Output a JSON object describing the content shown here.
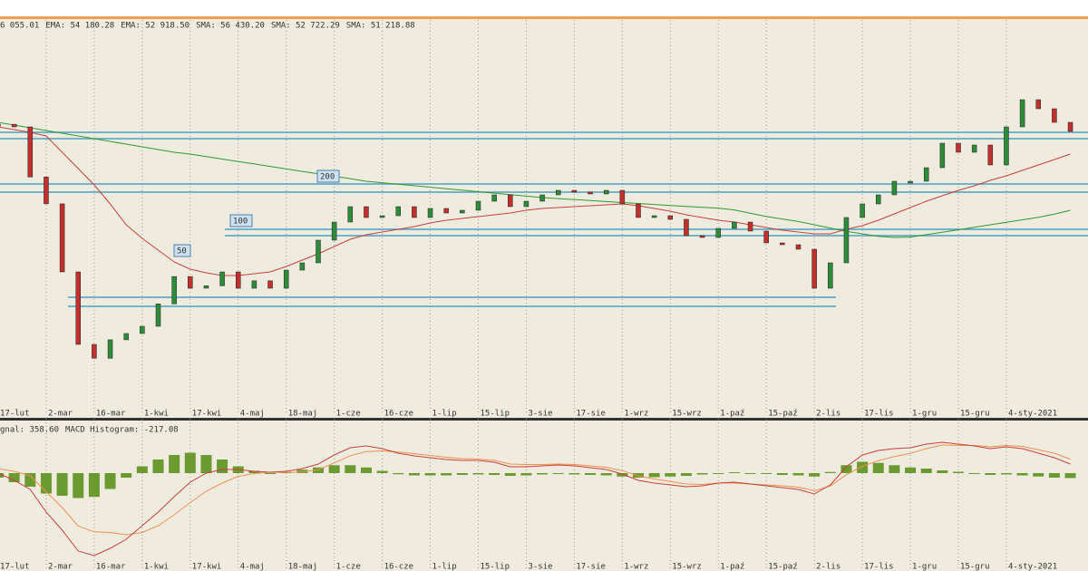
{
  "chart_data": [
    {
      "type": "line",
      "legend": [
        {
          "text": "6 055.01",
          "color": "#333333"
        },
        {
          "text": "EMA: 54 180.28",
          "color": "#e0905a"
        },
        {
          "text": "EMA: 52 918.50",
          "color": "#c8403c"
        },
        {
          "text": "SMA: 56 430.20",
          "color": "#4a7fd0"
        },
        {
          "text": "SMA: 52 722.29",
          "color": "#a08f5a"
        },
        {
          "text": "SMA: 51 218.88",
          "color": "#2e9a2e"
        }
      ],
      "categories": [
        "17-lut",
        null,
        null,
        "2-mar",
        null,
        null,
        "16-mar",
        null,
        null,
        "1-kwi",
        null,
        null,
        "17-kwi",
        null,
        null,
        "4-maj",
        null,
        null,
        "18-maj",
        null,
        null,
        "1-cze",
        null,
        null,
        "16-cze",
        null,
        null,
        "1-lip",
        null,
        null,
        "15-lip",
        null,
        null,
        "3-sie",
        null,
        null,
        "17-sie",
        null,
        null,
        "1-wrz",
        null,
        null,
        "15-wrz",
        null,
        null,
        "1-paź",
        null,
        null,
        "15-paź",
        null,
        null,
        "2-lis",
        null,
        null,
        "17-lis",
        null,
        null,
        "1-gru",
        null,
        null,
        "15-gru",
        null,
        null,
        "4-sty-2021",
        null,
        null,
        null,
        null
      ],
      "series": [
        {
          "color": "#2a2a2a",
          "values": [
            56600,
            56440,
            53400,
            51770,
            47640,
            43240,
            42400,
            43520,
            43900,
            44340,
            45700,
            47360,
            46650,
            46800,
            47640,
            46650,
            47100,
            46650,
            47750,
            48190,
            49565,
            50665,
            51600,
            50940,
            51050,
            51600,
            50940,
            51490,
            51215,
            51380,
            51930,
            52315,
            51600,
            51930,
            52315,
            52590,
            52480,
            52370,
            52590,
            51765,
            50940,
            51050,
            50830,
            49840,
            49730,
            50280,
            50665,
            50115,
            49400,
            49290,
            49015,
            46650,
            48190,
            50940,
            51765,
            52315,
            53140,
            53140,
            53965,
            55450,
            54900,
            55340,
            54130,
            56440,
            58090,
            57540,
            56715,
            56165
          ]
        },
        {
          "color": "#c8403c",
          "values": [
            56440,
            56275,
            56110,
            55890,
            54900,
            53910,
            52920,
            51765,
            50500,
            49675,
            48960,
            48245,
            47805,
            47585,
            47420,
            47420,
            47530,
            47640,
            47970,
            48355,
            48740,
            49180,
            49620,
            49895,
            50060,
            50225,
            50390,
            50610,
            50775,
            50885,
            50995,
            51105,
            51215,
            51380,
            51490,
            51545,
            51600,
            51655,
            51710,
            51765,
            51655,
            51490,
            51325,
            51105,
            50940,
            50775,
            50665,
            50500,
            50335,
            50170,
            50060,
            49950,
            49950,
            50225,
            50445,
            50775,
            51160,
            51545,
            51930,
            52260,
            52590,
            52865,
            53195,
            53470,
            53800,
            54130,
            54460,
            54790
          ]
        },
        {
          "color": "#2e9a2e",
          "values": [
            56715,
            56550,
            56385,
            56220,
            56055,
            55890,
            55725,
            55560,
            55395,
            55230,
            55065,
            54900,
            54790,
            54640,
            54490,
            54340,
            54190,
            54040,
            53890,
            53740,
            53590,
            53440,
            53300,
            53140,
            53050,
            52960,
            52870,
            52780,
            52690,
            52600,
            52510,
            52420,
            52330,
            52240,
            52150,
            52090,
            52030,
            51970,
            51910,
            51850,
            51790,
            51730,
            51670,
            51610,
            51560,
            51510,
            51400,
            51200,
            51000,
            50850,
            50700,
            50500,
            50300,
            50100,
            49950,
            49800,
            49730,
            49750,
            49900,
            50050,
            50200,
            50350,
            50500,
            50650,
            50800,
            50950,
            51150,
            51380
          ]
        }
      ],
      "levels": {
        "color": "#4aa0c8",
        "values": [
          56110,
          55725,
          52975,
          52480,
          50225,
          49840,
          46100,
          45550
        ]
      },
      "annotations": [
        "200",
        "100",
        "50"
      ],
      "ylim": [
        38950,
        62600
      ],
      "grid": true
    },
    {
      "type": "macd",
      "legend": [
        {
          "text": "gnal: 358.60",
          "color": "#c8403c"
        },
        {
          "text": "MACD Histogram: -217.08",
          "color": "#5a8a2a"
        }
      ],
      "series": [
        {
          "color": "#c8403c",
          "values": [
            0,
            -320,
            -720,
            -1720,
            -2520,
            -3440,
            -3640,
            -3320,
            -2920,
            -2320,
            -1720,
            -1040,
            -400,
            0,
            160,
            160,
            80,
            40,
            80,
            200,
            400,
            800,
            1120,
            1200,
            1080,
            880,
            760,
            680,
            600,
            560,
            560,
            480,
            280,
            280,
            320,
            360,
            320,
            240,
            160,
            -40,
            -320,
            -440,
            -520,
            -600,
            -560,
            -440,
            -400,
            -480,
            -560,
            -640,
            -720,
            -920,
            -520,
            280,
            800,
            1000,
            1080,
            1120,
            1280,
            1360,
            1280,
            1200,
            1080,
            1160,
            1080,
            880,
            680,
            400
          ]
        },
        {
          "color": "#f09050",
          "values": [
            200,
            80,
            -120,
            -820,
            -1520,
            -2340,
            -2590,
            -2620,
            -2720,
            -2620,
            -2320,
            -1840,
            -1300,
            -800,
            -440,
            -140,
            -20,
            40,
            30,
            50,
            150,
            450,
            770,
            950,
            980,
            930,
            860,
            780,
            700,
            640,
            620,
            560,
            400,
            380,
            380,
            400,
            380,
            320,
            260,
            110,
            -120,
            -260,
            -370,
            -480,
            -500,
            -440,
            -440,
            -480,
            -520,
            -560,
            -620,
            -770,
            -570,
            -70,
            300,
            550,
            730,
            870,
            1080,
            1240,
            1220,
            1220,
            1160,
            1220,
            1180,
            1030,
            880,
            617
          ]
        }
      ],
      "histogram": {
        "color": "#6a9a30",
        "values": [
          -200,
          -400,
          -600,
          -900,
          -1000,
          -1100,
          -1050,
          -700,
          -200,
          300,
          600,
          800,
          900,
          800,
          600,
          300,
          100,
          0,
          50,
          150,
          250,
          350,
          350,
          250,
          100,
          -50,
          -100,
          -100,
          -100,
          -80,
          -60,
          -80,
          -120,
          -100,
          -60,
          -40,
          -60,
          -80,
          -100,
          -150,
          -200,
          -180,
          -150,
          -120,
          -60,
          0,
          40,
          0,
          -40,
          -80,
          -100,
          -150,
          50,
          350,
          500,
          450,
          350,
          250,
          200,
          120,
          60,
          -20,
          -80,
          -60,
          -100,
          -150,
          -200,
          -217.08
        ]
      },
      "ylim": [
        -4240,
        2160
      ],
      "grid": true
    }
  ]
}
